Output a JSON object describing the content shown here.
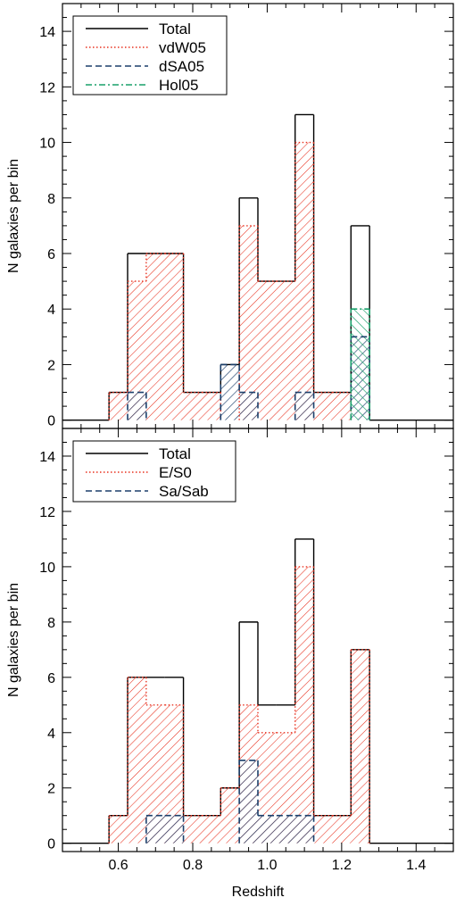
{
  "chart_data": [
    {
      "type": "bar",
      "subtype": "histogram",
      "panel": "top",
      "xlabel": "",
      "ylabel": "N galaxies per bin",
      "xlim": [
        0.45,
        1.5
      ],
      "ylim": [
        -0.3,
        15
      ],
      "xticks": [
        0.6,
        0.8,
        1.0,
        1.2,
        1.4
      ],
      "xtick_labels": [
        "",
        "",
        "",
        "",
        ""
      ],
      "yticks": [
        0,
        2,
        4,
        6,
        8,
        10,
        12,
        14
      ],
      "ytick_labels": [
        "0",
        "2",
        "4",
        "6",
        "8",
        "10",
        "12",
        "14"
      ],
      "bin_width": 0.05,
      "bin_centers": [
        0.6,
        0.65,
        0.7,
        0.75,
        0.8,
        0.85,
        0.9,
        0.95,
        1.0,
        1.05,
        1.1,
        1.15,
        1.2,
        1.25
      ],
      "legend_position": "top-left",
      "series": [
        {
          "name": "Total",
          "style": "solid",
          "color": "#000000",
          "hatch": "none",
          "values": [
            1,
            6,
            6,
            6,
            1,
            1,
            2,
            8,
            5,
            5,
            11,
            1,
            1,
            7
          ]
        },
        {
          "name": "vdW05",
          "style": "dotted",
          "color": "#e8301e",
          "hatch": "diagonal",
          "values": [
            1,
            5,
            6,
            6,
            1,
            1,
            0,
            7,
            5,
            5,
            10,
            1,
            1,
            0
          ]
        },
        {
          "name": "dSA05",
          "style": "dashed",
          "color": "#1b3f6b",
          "hatch": "diagonal",
          "values": [
            0,
            1,
            0,
            0,
            0,
            0,
            2,
            1,
            0,
            0,
            1,
            0,
            0,
            3
          ]
        },
        {
          "name": "Hol05",
          "style": "dash-dot",
          "color": "#18a06a",
          "hatch": "anti-diagonal",
          "values": [
            0,
            0,
            0,
            0,
            0,
            0,
            0,
            0,
            0,
            0,
            0,
            0,
            0,
            4
          ]
        }
      ]
    },
    {
      "type": "bar",
      "subtype": "histogram",
      "panel": "bottom",
      "xlabel": "Redshift",
      "ylabel": "N galaxies per bin",
      "xlim": [
        0.45,
        1.5
      ],
      "ylim": [
        -0.3,
        15
      ],
      "xticks": [
        0.6,
        0.8,
        1.0,
        1.2,
        1.4
      ],
      "xtick_labels": [
        "0.6",
        "0.8",
        "1.0",
        "1.2",
        "1.4"
      ],
      "yticks": [
        0,
        2,
        4,
        6,
        8,
        10,
        12,
        14
      ],
      "ytick_labels": [
        "0",
        "2",
        "4",
        "6",
        "8",
        "10",
        "12",
        "14"
      ],
      "bin_width": 0.05,
      "bin_centers": [
        0.6,
        0.65,
        0.7,
        0.75,
        0.8,
        0.85,
        0.9,
        0.95,
        1.0,
        1.05,
        1.1,
        1.15,
        1.2,
        1.25
      ],
      "legend_position": "top-left",
      "series": [
        {
          "name": "Total",
          "style": "solid",
          "color": "#000000",
          "hatch": "none",
          "values": [
            1,
            6,
            6,
            6,
            1,
            1,
            2,
            8,
            5,
            5,
            11,
            1,
            1,
            7
          ]
        },
        {
          "name": "E/S0",
          "style": "dotted",
          "color": "#e8301e",
          "hatch": "diagonal",
          "values": [
            1,
            6,
            5,
            5,
            1,
            1,
            2,
            5,
            4,
            4,
            10,
            1,
            1,
            7
          ]
        },
        {
          "name": "Sa/Sab",
          "style": "dashed",
          "color": "#1b3f6b",
          "hatch": "diagonal",
          "values": [
            0,
            0,
            1,
            1,
            0,
            0,
            0,
            3,
            1,
            1,
            1,
            0,
            0,
            0
          ]
        }
      ]
    }
  ]
}
